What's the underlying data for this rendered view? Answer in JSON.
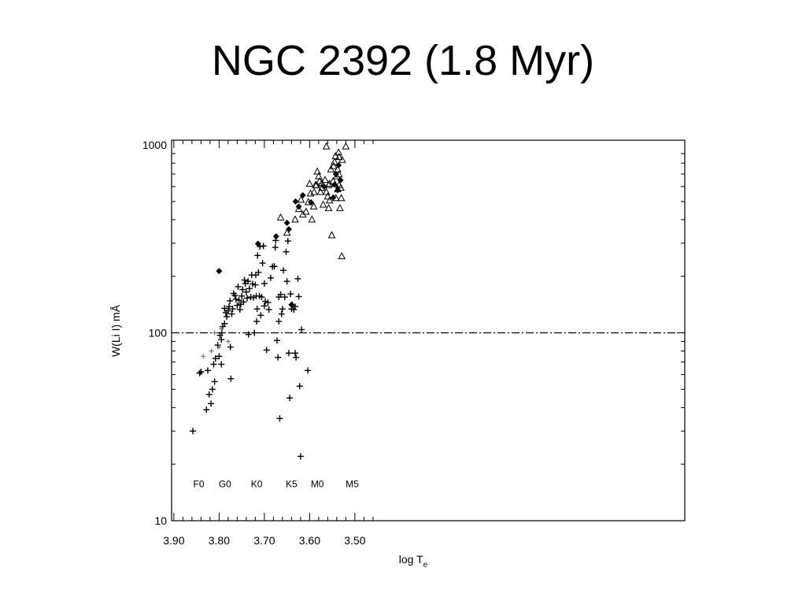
{
  "slide": {
    "title": "NGC 2392 (1.8 Myr)"
  },
  "chart_data": {
    "type": "scatter",
    "title": "NGC 2392 (1.8 Myr)",
    "xlabel_main": "log T",
    "xlabel_sub": "e",
    "ylabel": "W(Li I) mÅ",
    "x_reversed": true,
    "y_scale": "log",
    "xlim": [
      3.9,
      3.45
    ],
    "ylim": [
      10,
      1000
    ],
    "x_ticks": [
      3.9,
      3.8,
      3.7,
      3.6,
      3.5
    ],
    "x_tick_labels": [
      "3.90",
      "3.80",
      "3.70",
      "3.60",
      "3.50"
    ],
    "y_ticks": [
      10,
      100,
      1000
    ],
    "y_tick_labels": [
      "10",
      "100",
      "1000"
    ],
    "reference_line": {
      "y": 100,
      "style": "dash-dot"
    },
    "spectral_types": [
      {
        "label": "F0",
        "x": 3.845,
        "y": 15.8
      },
      {
        "label": "G0",
        "x": 3.787,
        "y": 15.8
      },
      {
        "label": "K0",
        "x": 3.717,
        "y": 15.8
      },
      {
        "label": "K5",
        "x": 3.64,
        "y": 15.8
      },
      {
        "label": "M0",
        "x": 3.583,
        "y": 15.8
      },
      {
        "label": "M5",
        "x": 3.506,
        "y": 15.8
      }
    ],
    "series": [
      {
        "marker": "plus",
        "points": [
          [
            3.858,
            30
          ],
          [
            3.843,
            61
          ],
          [
            3.84,
            62
          ],
          [
            3.828,
            39
          ],
          [
            3.822,
            47
          ],
          [
            3.818,
            42
          ],
          [
            3.815,
            50
          ],
          [
            3.812,
            68
          ],
          [
            3.808,
            73
          ],
          [
            3.803,
            86
          ],
          [
            3.8,
            75
          ],
          [
            3.798,
            97
          ],
          [
            3.795,
            92
          ],
          [
            3.795,
            68
          ],
          [
            3.792,
            108
          ],
          [
            3.788,
            112
          ],
          [
            3.785,
            128
          ],
          [
            3.783,
            122
          ],
          [
            3.78,
            131
          ],
          [
            3.778,
            138
          ],
          [
            3.776,
            148
          ],
          [
            3.774,
            57
          ],
          [
            3.772,
            126
          ],
          [
            3.77,
            134
          ],
          [
            3.768,
            162
          ],
          [
            3.765,
            158
          ],
          [
            3.763,
            151
          ],
          [
            3.76,
            140
          ],
          [
            3.758,
            176
          ],
          [
            3.756,
            149
          ],
          [
            3.754,
            133
          ],
          [
            3.752,
            142
          ],
          [
            3.75,
            157
          ],
          [
            3.748,
            170
          ],
          [
            3.746,
            146
          ],
          [
            3.744,
            191
          ],
          [
            3.742,
            183
          ],
          [
            3.74,
            165
          ],
          [
            3.738,
            153
          ],
          [
            3.736,
            188
          ],
          [
            3.733,
            172
          ],
          [
            3.73,
            155
          ],
          [
            3.728,
            203
          ],
          [
            3.726,
            182
          ],
          [
            3.724,
            154
          ],
          [
            3.722,
            100
          ],
          [
            3.72,
            180
          ],
          [
            3.719,
            203
          ],
          [
            3.718,
            157
          ],
          [
            3.716,
            134
          ],
          [
            3.715,
            258
          ],
          [
            3.713,
            210
          ],
          [
            3.711,
            157
          ],
          [
            3.71,
            288
          ],
          [
            3.708,
            124
          ],
          [
            3.706,
            155
          ],
          [
            3.704,
            235
          ],
          [
            3.702,
            290
          ],
          [
            3.7,
            183
          ],
          [
            3.698,
            147
          ],
          [
            3.695,
            81
          ],
          [
            3.692,
            145
          ],
          [
            3.69,
            133
          ],
          [
            3.686,
            196
          ],
          [
            3.682,
            225
          ],
          [
            3.678,
            226
          ],
          [
            3.676,
            285
          ],
          [
            3.675,
            310
          ],
          [
            3.672,
            91
          ],
          [
            3.67,
            74
          ],
          [
            3.668,
            155
          ],
          [
            3.666,
            35
          ],
          [
            3.664,
            160
          ],
          [
            3.662,
            126
          ],
          [
            3.66,
            134
          ],
          [
            3.658,
            215
          ],
          [
            3.655,
            155
          ],
          [
            3.652,
            270
          ],
          [
            3.65,
            188
          ],
          [
            3.648,
            308
          ],
          [
            3.646,
            78
          ],
          [
            3.644,
            45
          ],
          [
            3.642,
            161
          ],
          [
            3.64,
            134
          ],
          [
            3.638,
            141
          ],
          [
            3.635,
            133
          ],
          [
            3.632,
            78
          ],
          [
            3.63,
            74
          ],
          [
            3.626,
            194
          ],
          [
            3.624,
            156
          ],
          [
            3.622,
            52
          ],
          [
            3.62,
            22
          ],
          [
            3.618,
            104
          ],
          [
            3.604,
            63
          ],
          [
            3.775,
            84
          ],
          [
            3.825,
            63
          ],
          [
            3.81,
            55
          ],
          [
            3.788,
            135
          ],
          [
            3.735,
            98
          ],
          [
            3.7,
            139
          ],
          [
            3.668,
            115
          ],
          [
            3.632,
            138
          ],
          [
            3.717,
            115
          ],
          [
            3.794,
            100
          ]
        ]
      },
      {
        "marker": "filled-diamond",
        "points": [
          [
            3.8,
            213
          ],
          [
            3.714,
            298
          ],
          [
            3.674,
            326
          ],
          [
            3.65,
            385
          ],
          [
            3.646,
            356
          ],
          [
            3.64,
            141
          ],
          [
            3.631,
            500
          ],
          [
            3.624,
            470
          ],
          [
            3.615,
            540
          ],
          [
            3.597,
            495
          ],
          [
            3.568,
            600
          ],
          [
            3.545,
            615
          ],
          [
            3.538,
            575
          ],
          [
            3.532,
            650
          ],
          [
            3.536,
            780
          ],
          [
            3.548,
            525
          ],
          [
            3.542,
            700
          ]
        ]
      },
      {
        "marker": "triangle",
        "points": [
          [
            3.664,
            410
          ],
          [
            3.65,
            340
          ],
          [
            3.632,
            400
          ],
          [
            3.624,
            455
          ],
          [
            3.619,
            510
          ],
          [
            3.615,
            425
          ],
          [
            3.608,
            440
          ],
          [
            3.603,
            495
          ],
          [
            3.598,
            550
          ],
          [
            3.595,
            400
          ],
          [
            3.591,
            470
          ],
          [
            3.587,
            610
          ],
          [
            3.583,
            720
          ],
          [
            3.58,
            680
          ],
          [
            3.578,
            640
          ],
          [
            3.576,
            560
          ],
          [
            3.573,
            590
          ],
          [
            3.57,
            480
          ],
          [
            3.566,
            650
          ],
          [
            3.563,
            560
          ],
          [
            3.56,
            530
          ],
          [
            3.558,
            460
          ],
          [
            3.556,
            620
          ],
          [
            3.553,
            740
          ],
          [
            3.551,
            330
          ],
          [
            3.548,
            640
          ],
          [
            3.545,
            810
          ],
          [
            3.543,
            870
          ],
          [
            3.54,
            680
          ],
          [
            3.538,
            580
          ],
          [
            3.536,
            910
          ],
          [
            3.535,
            610
          ],
          [
            3.533,
            460
          ],
          [
            3.531,
            590
          ],
          [
            3.53,
            520
          ],
          [
            3.529,
            255
          ],
          [
            3.528,
            830
          ],
          [
            3.585,
            610
          ],
          [
            3.563,
            980
          ],
          [
            3.538,
            740
          ],
          [
            3.535,
            695
          ],
          [
            3.547,
            770
          ],
          [
            3.558,
            610
          ],
          [
            3.52,
            980
          ],
          [
            3.59,
            560
          ],
          [
            3.556,
            505
          ],
          [
            3.542,
            520
          ],
          [
            3.535,
            860
          ],
          [
            3.6,
            620
          ],
          [
            3.573,
            625
          ]
        ]
      },
      {
        "marker": "small-cross",
        "points": [
          [
            3.835,
            75
          ],
          [
            3.817,
            80
          ],
          [
            3.81,
            100
          ],
          [
            3.8,
            84
          ],
          [
            3.795,
            105
          ],
          [
            3.78,
            90
          ]
        ]
      }
    ]
  }
}
